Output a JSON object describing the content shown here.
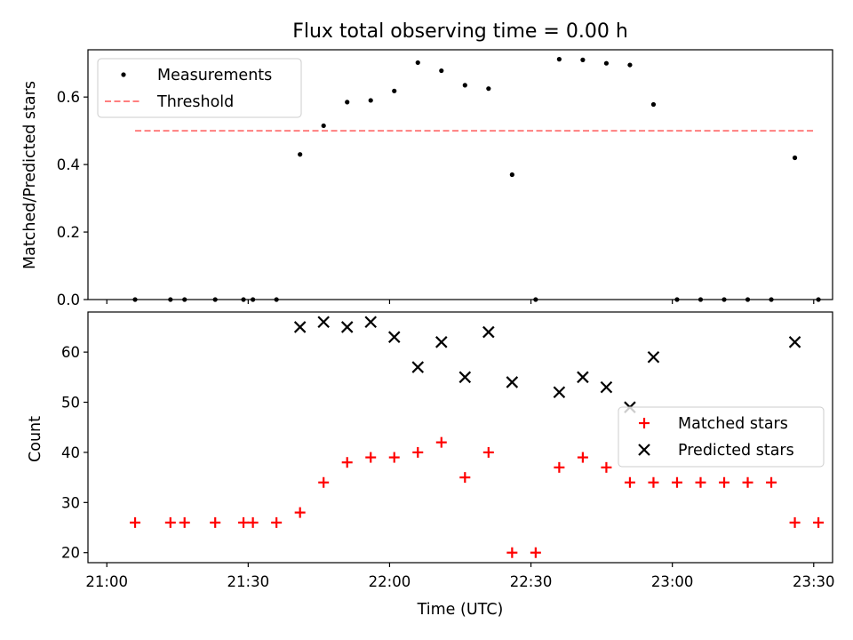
{
  "chart_data": [
    {
      "type": "scatter",
      "title": "Flux total observing time = 0.00 h",
      "ylabel": "Matched/Predicted stars",
      "xlabel": "",
      "xlim": [
        "20:56",
        "23:34"
      ],
      "ylim": [
        0,
        0.74
      ],
      "yticks": [
        "0.0",
        "0.2",
        "0.4",
        "0.6"
      ],
      "threshold": {
        "name": "Threshold",
        "value": 0.5,
        "x_range": [
          "21:06",
          "23:30"
        ],
        "color": "#ff7f7f"
      },
      "series": [
        {
          "name": "Measurements",
          "color": "#000000",
          "points": [
            [
              "21:06",
              0
            ],
            [
              "21:13.5",
              0
            ],
            [
              "21:16.5",
              0
            ],
            [
              "21:23",
              0
            ],
            [
              "21:29",
              0
            ],
            [
              "21:31",
              0
            ],
            [
              "21:36",
              0
            ],
            [
              "21:41",
              0.43
            ],
            [
              "21:46",
              0.515
            ],
            [
              "21:51",
              0.585
            ],
            [
              "21:56",
              0.59
            ],
            [
              "22:01",
              0.618
            ],
            [
              "22:06",
              0.702
            ],
            [
              "22:11",
              0.678
            ],
            [
              "22:16",
              0.635
            ],
            [
              "22:21",
              0.625
            ],
            [
              "22:26",
              0.37
            ],
            [
              "22:31",
              0
            ],
            [
              "22:36",
              0.712
            ],
            [
              "22:41",
              0.71
            ],
            [
              "22:46",
              0.7
            ],
            [
              "22:51",
              0.695
            ],
            [
              "22:56",
              0.578
            ],
            [
              "23:01",
              0
            ],
            [
              "23:06",
              0
            ],
            [
              "23:11",
              0
            ],
            [
              "23:16",
              0
            ],
            [
              "23:21",
              0
            ],
            [
              "23:26",
              0.42
            ],
            [
              "23:31",
              0
            ]
          ]
        }
      ],
      "legend_placement": "upper-left"
    },
    {
      "type": "scatter",
      "title": "",
      "xlabel": "Time (UTC)",
      "ylabel": "Count",
      "xlim": [
        "20:56",
        "23:34"
      ],
      "ylim": [
        18,
        68
      ],
      "yticks": [
        "20",
        "30",
        "40",
        "50",
        "60"
      ],
      "xticks": [
        "21:00",
        "21:30",
        "22:00",
        "22:30",
        "23:00",
        "23:30"
      ],
      "series": [
        {
          "name": "Matched stars",
          "marker": "+",
          "color": "#ff0000",
          "points": [
            [
              "21:06",
              26
            ],
            [
              "21:13.5",
              26
            ],
            [
              "21:16.5",
              26
            ],
            [
              "21:23",
              26
            ],
            [
              "21:29",
              26
            ],
            [
              "21:31",
              26
            ],
            [
              "21:36",
              26
            ],
            [
              "21:41",
              28
            ],
            [
              "21:46",
              34
            ],
            [
              "21:51",
              38
            ],
            [
              "21:56",
              39
            ],
            [
              "22:01",
              39
            ],
            [
              "22:06",
              40
            ],
            [
              "22:11",
              42
            ],
            [
              "22:16",
              35
            ],
            [
              "22:21",
              40
            ],
            [
              "22:26",
              20
            ],
            [
              "22:31",
              20
            ],
            [
              "22:36",
              37
            ],
            [
              "22:41",
              39
            ],
            [
              "22:46",
              37
            ],
            [
              "22:51",
              34
            ],
            [
              "22:56",
              34
            ],
            [
              "23:01",
              34
            ],
            [
              "23:06",
              34
            ],
            [
              "23:11",
              34
            ],
            [
              "23:16",
              34
            ],
            [
              "23:21",
              34
            ],
            [
              "23:26",
              26
            ],
            [
              "23:31",
              26
            ]
          ]
        },
        {
          "name": "Predicted stars",
          "marker": "x",
          "color": "#000000",
          "points": [
            [
              "21:41",
              65
            ],
            [
              "21:46",
              66
            ],
            [
              "21:51",
              65
            ],
            [
              "21:56",
              66
            ],
            [
              "22:01",
              63
            ],
            [
              "22:06",
              57
            ],
            [
              "22:11",
              62
            ],
            [
              "22:16",
              55
            ],
            [
              "22:21",
              64
            ],
            [
              "22:26",
              54
            ],
            [
              "22:36",
              52
            ],
            [
              "22:41",
              55
            ],
            [
              "22:46",
              53
            ],
            [
              "22:51",
              49
            ],
            [
              "22:56",
              59
            ],
            [
              "23:26",
              62
            ]
          ]
        }
      ],
      "legend_placement": "center-right"
    }
  ]
}
